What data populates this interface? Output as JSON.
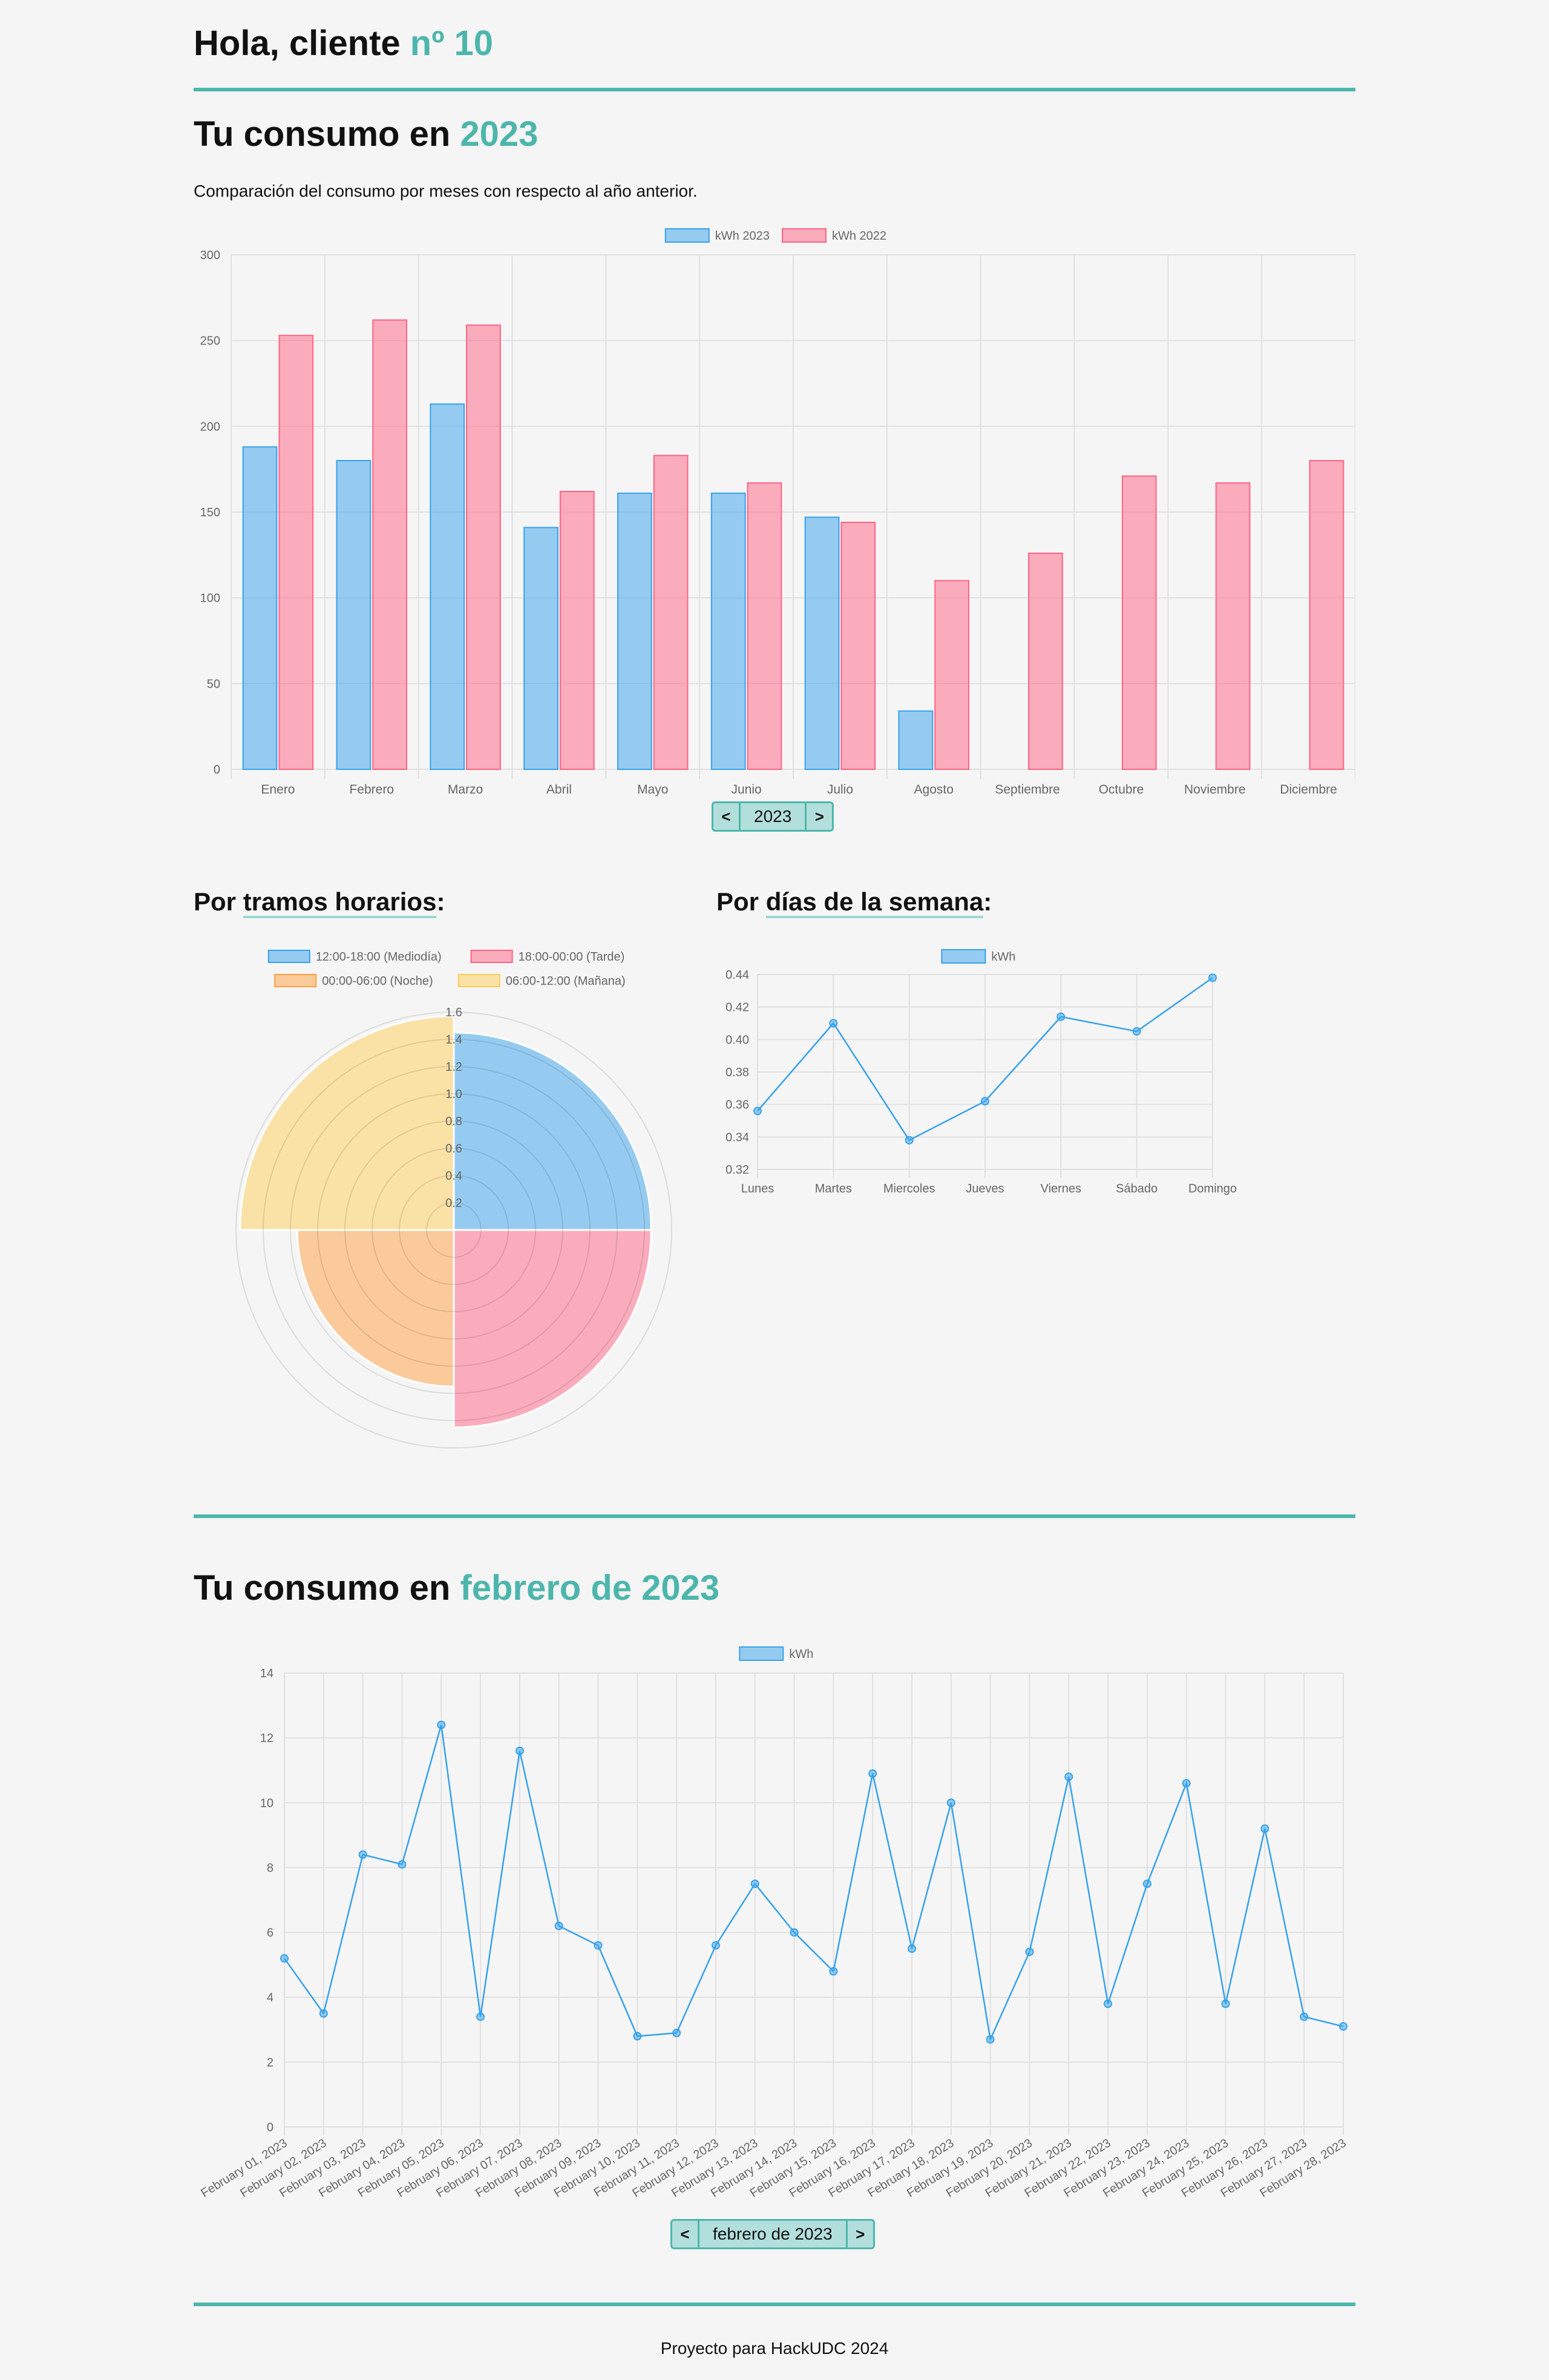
{
  "greeting": {
    "prefix": "Hola, cliente ",
    "client": "nº 10"
  },
  "yearly": {
    "title_prefix": "Tu consumo en ",
    "year": "2023",
    "description": "Comparación del consumo por meses con respecto al año anterior.",
    "pager": {
      "prev": "<",
      "label": "2023",
      "next": ">"
    }
  },
  "tramos": {
    "title_prefix": "Por ",
    "title_u": "tramos horarios",
    "title_suffix": ":"
  },
  "dias": {
    "title_prefix": "Por ",
    "title_u": "días de la semana",
    "title_suffix": ":"
  },
  "monthly": {
    "title_prefix": "Tu consumo en ",
    "period": "febrero de 2023",
    "pager": {
      "prev": "<",
      "label": "febrero de 2023",
      "next": ">"
    }
  },
  "footer": {
    "text": "Proyecto para HackUDC 2024"
  },
  "colors": {
    "accent": "#4db6ac",
    "blue": "#36a2eb",
    "pink": "#ff6384",
    "orange": "#ff9f40",
    "yellow": "#ffcd56"
  },
  "chart_data": [
    {
      "type": "bar",
      "categories": [
        "Enero",
        "Febrero",
        "Marzo",
        "Abril",
        "Mayo",
        "Junio",
        "Julio",
        "Agosto",
        "Septiembre",
        "Octubre",
        "Noviembre",
        "Diciembre"
      ],
      "series": [
        {
          "name": "kWh 2023",
          "values": [
            188,
            180,
            213,
            141,
            161,
            161,
            147,
            34,
            null,
            null,
            null,
            null
          ]
        },
        {
          "name": "kWh 2022",
          "values": [
            253,
            262,
            259,
            162,
            183,
            167,
            144,
            110,
            126,
            171,
            167,
            180
          ]
        }
      ],
      "ylim": [
        0,
        300
      ],
      "yticks": [
        "0",
        "50",
        "100",
        "150",
        "200",
        "250",
        "300"
      ],
      "legend": "top",
      "grid": true
    },
    {
      "type": "polarArea",
      "categories": [
        "12:00-18:00 (Mediodía)",
        "18:00-00:00 (Tarde)",
        "00:00-06:00 (Noche)",
        "06:00-12:00 (Mañana)"
      ],
      "values": [
        1.45,
        1.45,
        1.15,
        1.57
      ],
      "rlim": [
        0,
        1.6
      ],
      "rticks": [
        "0.2",
        "0.4",
        "0.6",
        "0.8",
        "1.0",
        "1.2",
        "1.4",
        "1.6"
      ],
      "legend": "top"
    },
    {
      "type": "line",
      "categories": [
        "Lunes",
        "Martes",
        "Miercoles",
        "Jueves",
        "Viernes",
        "Sábado",
        "Domingo"
      ],
      "series": [
        {
          "name": "kWh",
          "values": [
            0.356,
            0.41,
            0.338,
            0.362,
            0.414,
            0.405,
            0.438
          ]
        }
      ],
      "ylim": [
        0.32,
        0.44
      ],
      "yticks": [
        "0.32",
        "0.34",
        "0.36",
        "0.38",
        "0.40",
        "0.42",
        "0.44"
      ],
      "legend": "top",
      "grid": true
    },
    {
      "type": "line",
      "categories": [
        "February 01, 2023",
        "February 02, 2023",
        "February 03, 2023",
        "February 04, 2023",
        "February 05, 2023",
        "February 06, 2023",
        "February 07, 2023",
        "February 08, 2023",
        "February 09, 2023",
        "February 10, 2023",
        "February 11, 2023",
        "February 12, 2023",
        "February 13, 2023",
        "February 14, 2023",
        "February 15, 2023",
        "February 16, 2023",
        "February 17, 2023",
        "February 18, 2023",
        "February 19, 2023",
        "February 20, 2023",
        "February 21, 2023",
        "February 22, 2023",
        "February 23, 2023",
        "February 24, 2023",
        "February 25, 2023",
        "February 26, 2023",
        "February 27, 2023",
        "February 28, 2023"
      ],
      "series": [
        {
          "name": "kWh",
          "values": [
            5.2,
            3.5,
            8.4,
            8.1,
            12.4,
            3.4,
            11.6,
            6.2,
            5.6,
            2.8,
            2.9,
            5.6,
            7.5,
            6.0,
            4.8,
            10.9,
            5.5,
            10.0,
            2.7,
            5.4,
            10.8,
            3.8,
            7.5,
            10.6,
            3.8,
            9.2,
            3.4,
            3.1
          ]
        }
      ],
      "ylim": [
        0,
        14
      ],
      "yticks": [
        "0",
        "2",
        "4",
        "6",
        "8",
        "10",
        "12",
        "14"
      ],
      "legend": "top",
      "grid": true
    }
  ]
}
